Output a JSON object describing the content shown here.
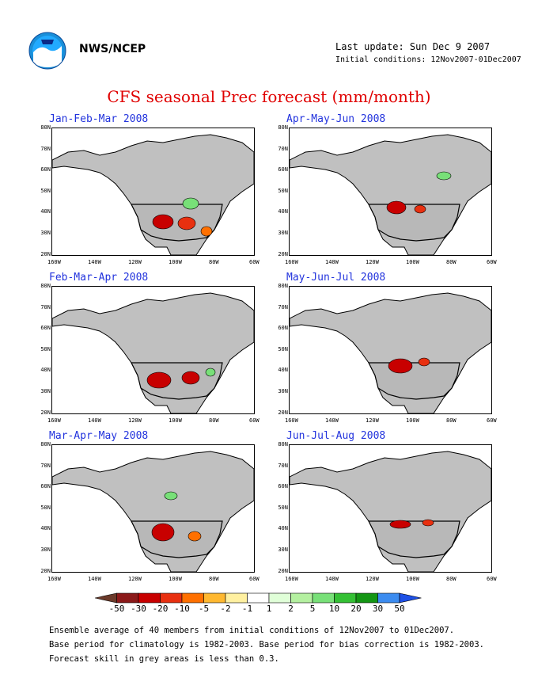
{
  "header": {
    "org": "NWS/NCEP",
    "last_update": "Last update: Sun Dec  9 2007",
    "initial_conditions": "Initial conditions: 12Nov2007-01Dec2007"
  },
  "title": "CFS seasonal Prec forecast (mm/month)",
  "panels": [
    {
      "label": "Jan-Feb-Mar 2008"
    },
    {
      "label": "Apr-May-Jun 2008"
    },
    {
      "label": "Feb-Mar-Apr 2008"
    },
    {
      "label": "May-Jun-Jul 2008"
    },
    {
      "label": "Mar-Apr-May 2008"
    },
    {
      "label": "Jun-Jul-Aug 2008"
    }
  ],
  "lat_labels": [
    "80N",
    "70N",
    "60N",
    "50N",
    "40N",
    "30N",
    "20N"
  ],
  "lon_labels": [
    "160W",
    "140W",
    "120W",
    "100W",
    "80W",
    "60W"
  ],
  "colorbar": {
    "labels": [
      "-50",
      "-30",
      "-20",
      "-10",
      "-5",
      "-2",
      "-1",
      "1",
      "2",
      "5",
      "10",
      "20",
      "30",
      "50"
    ],
    "colors": [
      "#6b3a2a",
      "#8b1a1a",
      "#c80000",
      "#e83010",
      "#ff7000",
      "#ffb830",
      "#fff0a0",
      "#ffffff",
      "#e0ffd8",
      "#b4f0a0",
      "#78e078",
      "#34c034",
      "#149614",
      "#3c8cf0",
      "#1e50e6"
    ]
  },
  "notes": [
    "Ensemble average of 40 members from initial conditions of 12Nov2007 to 01Dec2007.",
    "Base period for climatology is 1982-2003. Base period for bias correction is 1982-2003.",
    "Forecast skill in grey areas is less than 0.3."
  ]
}
